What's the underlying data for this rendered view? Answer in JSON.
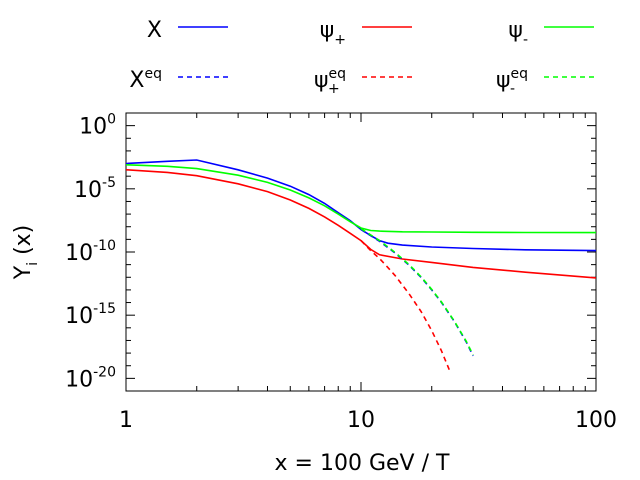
{
  "chart_data": {
    "type": "line",
    "xlabel": "x = 100 GeV / T",
    "ylabel": {
      "base": "Y",
      "sub": "i",
      "rest": " (x)"
    },
    "x_scale": "log",
    "y_scale": "log",
    "xlim": [
      1,
      100
    ],
    "ylim": [
      1e-21,
      10.0
    ],
    "x_ticks": [
      {
        "value": 1,
        "label": "1"
      },
      {
        "value": 10,
        "label": "10"
      },
      {
        "value": 100,
        "label": "100"
      }
    ],
    "y_ticks": [
      {
        "value": 1,
        "base": "10",
        "exp": "0"
      },
      {
        "value": 1e-05,
        "base": "10",
        "exp": "-5"
      },
      {
        "value": 1e-10,
        "base": "10",
        "exp": "-10"
      },
      {
        "value": 1e-15,
        "base": "10",
        "exp": "-15"
      },
      {
        "value": 1e-20,
        "base": "10",
        "exp": "-20"
      }
    ],
    "grid": false,
    "legend_position": "top",
    "series": [
      {
        "name": "X",
        "label_base": "X",
        "label_sub": "",
        "label_sup": "",
        "color": "#0000ff",
        "dash": "solid",
        "x": [
          1,
          1.5,
          2,
          3,
          4,
          5,
          6,
          7,
          8,
          9,
          10,
          11,
          12,
          13,
          15,
          20,
          30,
          50,
          100
        ],
        "y": [
          0.001,
          0.0015,
          0.0019,
          0.00032,
          7e-05,
          1.6e-05,
          3.5e-06,
          7e-07,
          1.3e-07,
          3e-08,
          6e-09,
          2e-09,
          8e-10,
          5e-10,
          3.5e-10,
          2.5e-10,
          1.9e-10,
          1.5e-10,
          1.3e-10
        ]
      },
      {
        "name": "ψ+",
        "label_base": "ψ",
        "label_sub": "+",
        "label_sup": "",
        "color": "#ff0000",
        "dash": "solid",
        "x": [
          1,
          1.5,
          2,
          3,
          4,
          5,
          6,
          7,
          8,
          9,
          10,
          11,
          12,
          15,
          20,
          30,
          50,
          100
        ],
        "y": [
          0.00032,
          0.0002,
          0.00011,
          2.5e-05,
          6e-06,
          1.3e-06,
          2.8e-07,
          6e-08,
          1.3e-08,
          3e-09,
          8e-10,
          1.6e-10,
          6e-11,
          2.8e-11,
          1.5e-11,
          6e-12,
          2.5e-12,
          9e-13
        ]
      },
      {
        "name": "ψ-",
        "label_base": "ψ",
        "label_sub": "-",
        "label_sup": "",
        "color": "#00ff00",
        "dash": "solid",
        "x": [
          1,
          1.5,
          2,
          3,
          4,
          5,
          6,
          7,
          8,
          9,
          10,
          11,
          12,
          15,
          20,
          30,
          50,
          100
        ],
        "y": [
          0.0008,
          0.0006,
          0.0004,
          0.00012,
          3.2e-05,
          8e-06,
          1.9e-06,
          4.5e-07,
          1e-07,
          2.5e-08,
          8e-09,
          5e-09,
          4.5e-09,
          4e-09,
          3.8e-09,
          3.6e-09,
          3.5e-09,
          3.4e-09
        ]
      },
      {
        "name": "Xeq",
        "label_base": "X",
        "label_sub": "",
        "label_sup": "eq",
        "color": "#0000ff",
        "dash": "dashed",
        "x": [
          10,
          12,
          14,
          16,
          18,
          20,
          22,
          25,
          28,
          30
        ],
        "y": [
          6e-09,
          7e-10,
          8e-11,
          9e-12,
          1e-12,
          1e-13,
          1e-14,
          3e-16,
          8e-18,
          6e-19
        ]
      },
      {
        "name": "ψ+eq",
        "label_base": "ψ",
        "label_sub": "+",
        "label_sup": "eq",
        "color": "#ff0000",
        "dash": "dashed",
        "x": [
          10,
          11,
          12,
          13,
          14,
          16,
          18,
          20,
          22,
          24
        ],
        "y": [
          8e-10,
          1.3e-10,
          3e-11,
          6e-12,
          1.3e-12,
          5e-14,
          2e-15,
          6e-17,
          1.5e-18,
          3e-20
        ]
      },
      {
        "name": "ψ-eq",
        "label_base": "ψ",
        "label_sub": "-",
        "label_sup": "eq",
        "color": "#00ff00",
        "dash": "dashed",
        "x": [
          10,
          12,
          14,
          16,
          18,
          20,
          22,
          25,
          28,
          30
        ],
        "y": [
          7e-09,
          8e-10,
          9e-11,
          1e-11,
          1.1e-12,
          1.1e-13,
          1.1e-14,
          3.2e-16,
          9e-18,
          7e-19
        ]
      }
    ]
  }
}
